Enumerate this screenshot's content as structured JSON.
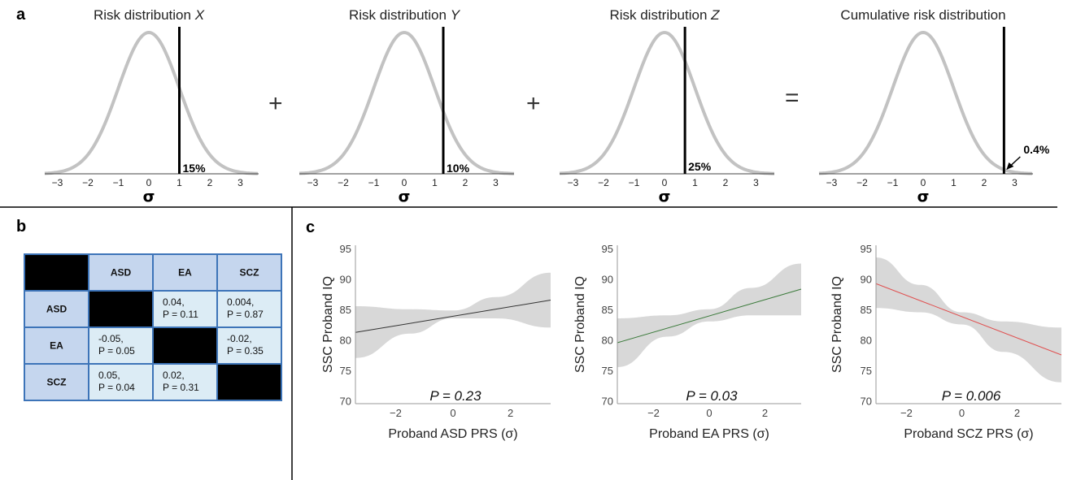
{
  "panels": {
    "a": "a",
    "b": "b",
    "c": "c"
  },
  "operators": [
    "+",
    "+",
    "="
  ],
  "chart_data": [
    {
      "type": "line",
      "title": "Risk distribution X",
      "title_prefix": "Risk distribution ",
      "title_var": "X",
      "xlabel": "σ",
      "x_ticks": [
        -3,
        -2,
        -1,
        0,
        1,
        2,
        3
      ],
      "threshold": 1.0,
      "threshold_label": "15%",
      "curve": "standard normal"
    },
    {
      "type": "line",
      "title": "Risk distribution Y",
      "title_prefix": "Risk distribution ",
      "title_var": "Y",
      "xlabel": "σ",
      "x_ticks": [
        -3,
        -2,
        -1,
        0,
        1,
        2,
        3
      ],
      "threshold": 1.28,
      "threshold_label": "10%",
      "curve": "standard normal"
    },
    {
      "type": "line",
      "title": "Risk distribution Z",
      "title_prefix": "Risk distribution ",
      "title_var": "Z",
      "xlabel": "σ",
      "x_ticks": [
        -3,
        -2,
        -1,
        0,
        1,
        2,
        3
      ],
      "threshold": 0.67,
      "threshold_label": "25%",
      "curve": "standard normal"
    },
    {
      "type": "line",
      "title": "Cumulative risk distribution",
      "title_prefix": "Cumulative risk distribution",
      "title_var": "",
      "xlabel": "σ",
      "x_ticks": [
        -3,
        -2,
        -1,
        0,
        1,
        2,
        3
      ],
      "threshold": 2.65,
      "threshold_label": "0.4%",
      "curve": "standard normal"
    },
    {
      "type": "table",
      "columns": [
        "",
        "ASD",
        "EA",
        "SCZ"
      ],
      "rows": [
        {
          "label": "ASD",
          "cells": [
            null,
            [
              "0.04,",
              "P = 0.11"
            ],
            [
              "0.004,",
              "P = 0.87"
            ]
          ]
        },
        {
          "label": "EA",
          "cells": [
            [
              "-0.05,",
              "P = 0.05"
            ],
            null,
            [
              "-0.02,",
              "P = 0.35"
            ]
          ]
        },
        {
          "label": "SCZ",
          "cells": [
            [
              "0.05,",
              "P = 0.04"
            ],
            [
              "0.02,",
              "P = 0.31"
            ],
            null
          ]
        }
      ]
    },
    {
      "type": "line",
      "xlabel": "Proband ASD PRS (σ)",
      "ylabel": "SSC Proband IQ",
      "x_ticks": [
        "−2",
        "0",
        "2"
      ],
      "y_ticks": [
        70,
        75,
        80,
        85,
        90,
        95
      ],
      "xlim": [
        -3.4,
        3.4
      ],
      "ylim": [
        69.5,
        95.5
      ],
      "line": {
        "x": [
          -3.4,
          3.4
        ],
        "y": [
          81.2,
          86.5
        ]
      },
      "band_upper": [
        [
          -3.4,
          85.5
        ],
        [
          -1.5,
          85.0
        ],
        [
          0,
          84.8
        ],
        [
          1.5,
          87.0
        ],
        [
          3.4,
          91.0
        ]
      ],
      "band_lower": [
        [
          -3.4,
          77.0
        ],
        [
          -1.5,
          81.0
        ],
        [
          0,
          83.5
        ],
        [
          1.5,
          83.5
        ],
        [
          3.4,
          82.0
        ]
      ],
      "line_color": "#333333",
      "annotation": "P = 0.23"
    },
    {
      "type": "line",
      "xlabel": "Proband EA PRS (σ)",
      "ylabel": "SSC Proband IQ",
      "x_ticks": [
        "−2",
        "0",
        "2"
      ],
      "y_ticks": [
        70,
        75,
        80,
        85,
        90,
        95
      ],
      "xlim": [
        -3.3,
        3.3
      ],
      "ylim": [
        69.5,
        95.5
      ],
      "line": {
        "x": [
          -3.3,
          3.3
        ],
        "y": [
          79.5,
          88.3
        ]
      },
      "band_upper": [
        [
          -3.3,
          83.5
        ],
        [
          -1.5,
          84.0
        ],
        [
          0,
          85.0
        ],
        [
          1.5,
          88.5
        ],
        [
          3.3,
          92.5
        ]
      ],
      "band_lower": [
        [
          -3.3,
          75.5
        ],
        [
          -1.5,
          80.5
        ],
        [
          0,
          83.0
        ],
        [
          1.5,
          84.0
        ],
        [
          3.3,
          84.0
        ]
      ],
      "line_color": "#3a7a3a",
      "annotation": "P = 0.03"
    },
    {
      "type": "line",
      "xlabel": "Proband SCZ PRS (σ)",
      "ylabel": "SSC Proband IQ",
      "x_ticks": [
        "−2",
        "0",
        "2"
      ],
      "y_ticks": [
        70,
        75,
        80,
        85,
        90,
        95
      ],
      "xlim": [
        -3.1,
        3.6
      ],
      "ylim": [
        69.5,
        95.5
      ],
      "line": {
        "x": [
          -3.1,
          3.6
        ],
        "y": [
          89.2,
          77.5
        ]
      },
      "band_upper": [
        [
          -3.1,
          93.5
        ],
        [
          -1.5,
          89.0
        ],
        [
          0,
          84.5
        ],
        [
          1.5,
          83.0
        ],
        [
          3.6,
          82.0
        ]
      ],
      "band_lower": [
        [
          -3.1,
          85.2
        ],
        [
          -1.5,
          84.5
        ],
        [
          0,
          82.5
        ],
        [
          1.5,
          78.0
        ],
        [
          3.6,
          73.0
        ]
      ],
      "line_color": "#e05050",
      "annotation": "P = 0.006"
    }
  ]
}
